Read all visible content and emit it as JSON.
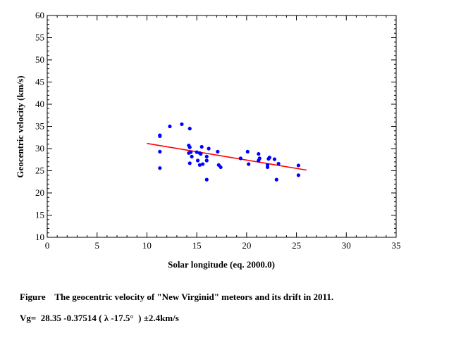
{
  "chart_data": {
    "type": "scatter",
    "xlabel": "Solar longitude (eq. 2000.0)",
    "ylabel": "Geocentric velocity (km/s)",
    "xlim": [
      0,
      35
    ],
    "ylim": [
      10,
      60
    ],
    "x_ticks": [
      0,
      5,
      10,
      15,
      20,
      25,
      30,
      35
    ],
    "y_ticks": [
      10,
      15,
      20,
      25,
      30,
      35,
      40,
      45,
      50,
      55,
      60
    ],
    "x_tick_labels": [
      "0",
      "5",
      "10",
      "15",
      "20",
      "25",
      "30",
      "35"
    ],
    "y_tick_labels": [
      "10",
      "15",
      "20",
      "25",
      "30",
      "35",
      "40",
      "45",
      "50",
      "55",
      "60"
    ],
    "grid": false,
    "series": [
      {
        "name": "meteors",
        "marker_color": "#0000ff",
        "points": [
          [
            11.3,
            33.0
          ],
          [
            11.3,
            32.8
          ],
          [
            11.3,
            29.3
          ],
          [
            11.3,
            25.6
          ],
          [
            12.3,
            35.0
          ],
          [
            13.5,
            35.5
          ],
          [
            14.3,
            34.5
          ],
          [
            14.2,
            30.7
          ],
          [
            14.3,
            30.3
          ],
          [
            14.4,
            29.2
          ],
          [
            14.2,
            29.0
          ],
          [
            14.5,
            28.2
          ],
          [
            14.3,
            26.7
          ],
          [
            15.0,
            29.2
          ],
          [
            15.3,
            29.0
          ],
          [
            15.4,
            28.8
          ],
          [
            15.5,
            30.4
          ],
          [
            15.3,
            26.3
          ],
          [
            15.1,
            27.3
          ],
          [
            15.6,
            26.5
          ],
          [
            16.0,
            28.2
          ],
          [
            16.2,
            30.0
          ],
          [
            16.0,
            27.3
          ],
          [
            16.0,
            23.0
          ],
          [
            17.1,
            29.3
          ],
          [
            17.2,
            26.3
          ],
          [
            17.4,
            25.8
          ],
          [
            19.4,
            27.8
          ],
          [
            20.1,
            29.3
          ],
          [
            20.2,
            26.5
          ],
          [
            21.2,
            28.8
          ],
          [
            21.3,
            27.8
          ],
          [
            21.2,
            27.3
          ],
          [
            22.1,
            26.3
          ],
          [
            22.3,
            28.0
          ],
          [
            22.2,
            27.7
          ],
          [
            22.1,
            25.8
          ],
          [
            22.8,
            27.6
          ],
          [
            23.0,
            23.0
          ],
          [
            23.2,
            26.6
          ],
          [
            25.2,
            26.2
          ],
          [
            25.2,
            24.0
          ]
        ]
      },
      {
        "name": "fit",
        "type": "line",
        "line_color": "#ff0000",
        "x": [
          10.0,
          26.0
        ],
        "y": [
          31.16,
          25.16
        ]
      }
    ]
  },
  "caption": {
    "text": "Figure    The geocentric velocity of \"New Virginid\" meteors and its drift in 2011.",
    "formula": "Vg=  28.35 -0.37514 ( λ -17.5°  ) ±2.4km/s"
  }
}
